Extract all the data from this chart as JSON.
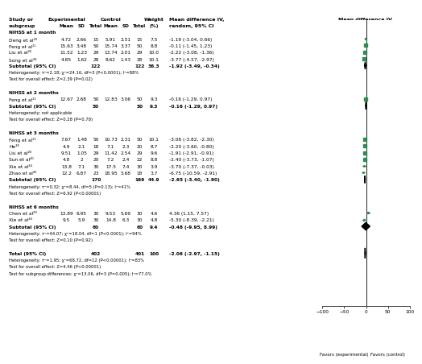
{
  "groups": [
    {
      "name": "NIHSS at 1 month",
      "studies": [
        {
          "label": "Deng et al²⁰",
          "exp_mean": "4.72",
          "exp_sd": "2.66",
          "exp_n": "15",
          "ctrl_mean": "5.91",
          "ctrl_sd": "2.51",
          "ctrl_n": "15",
          "weight": "7.5",
          "md": -1.19,
          "ci_lo": -3.04,
          "ci_hi": 0.66,
          "md_text": "-1.19 (-3.04, 0.66)"
        },
        {
          "label": "Feng et al¹¹",
          "exp_mean": "15.63",
          "exp_sd": "3.48",
          "exp_n": "50",
          "ctrl_mean": "15.74",
          "ctrl_sd": "3.37",
          "ctrl_n": "50",
          "weight": "8.8",
          "md": -0.11,
          "ci_lo": -1.45,
          "ci_hi": 1.23,
          "md_text": "-0.11 (-1.45, 1.23)"
        },
        {
          "label": "Liu et al²⁶",
          "exp_mean": "11.52",
          "exp_sd": "1.23",
          "exp_n": "29",
          "ctrl_mean": "13.74",
          "ctrl_sd": "2.01",
          "ctrl_n": "29",
          "weight": "10.0",
          "md": -2.22,
          "ci_lo": -3.08,
          "ci_hi": -1.36,
          "md_text": "-2.22 (-3.08, -1.36)"
        },
        {
          "label": "Song et al³³",
          "exp_mean": "4.85",
          "exp_sd": "1.62",
          "exp_n": "28",
          "ctrl_mean": "8.62",
          "ctrl_sd": "1.43",
          "ctrl_n": "28",
          "weight": "10.1",
          "md": -3.77,
          "ci_lo": -4.57,
          "ci_hi": -2.97,
          "md_text": "-3.77 (-4.57, -2.97)"
        }
      ],
      "sub_exp_n": "122",
      "sub_ctrl_n": "122",
      "sub_weight": "36.3",
      "sub_md": -1.92,
      "sub_ci_lo": -3.49,
      "sub_ci_hi": -0.34,
      "sub_md_text": "-1.92 (-3.49, -0.34)",
      "het": "Heterogeneity: τ²=2.18; χ²=24.16, df=3 (P<0.0001); I²=88%",
      "overall": "Test for overall effect: Z=2.39 (P=0.02)"
    },
    {
      "name": "NIHSS at 2 months",
      "studies": [
        {
          "label": "Feng et al¹¹",
          "exp_mean": "12.67",
          "exp_sd": "2.68",
          "exp_n": "50",
          "ctrl_mean": "12.83",
          "ctrl_sd": "3.06",
          "ctrl_n": "50",
          "weight": "9.3",
          "md": -0.16,
          "ci_lo": -1.29,
          "ci_hi": 0.97,
          "md_text": "-0.16 (-1.29, 0.97)"
        }
      ],
      "sub_exp_n": "50",
      "sub_ctrl_n": "50",
      "sub_weight": "9.3",
      "sub_md": -0.16,
      "sub_ci_lo": -1.29,
      "sub_ci_hi": 0.97,
      "sub_md_text": "-0.16 (-1.29, 0.97)",
      "het": "Heterogeneity: not applicable",
      "overall": "Test for overall effect: Z=0.28 (P=0.78)"
    },
    {
      "name": "NIHSS at 3 months",
      "studies": [
        {
          "label": "Feng et al¹¹",
          "exp_mean": "7.67",
          "exp_sd": "1.48",
          "exp_n": "50",
          "ctrl_mean": "10.73",
          "ctrl_sd": "2.31",
          "ctrl_n": "50",
          "weight": "10.1",
          "md": -3.06,
          "ci_lo": -3.82,
          "ci_hi": -2.3,
          "md_text": "-3.06 (-3.82, -2.30)"
        },
        {
          "label": "He³²",
          "exp_mean": "4.9",
          "exp_sd": "2.1",
          "exp_n": "18",
          "ctrl_mean": "7.1",
          "ctrl_sd": "2.3",
          "ctrl_n": "20",
          "weight": "8.7",
          "md": -2.2,
          "ci_lo": -3.6,
          "ci_hi": -0.8,
          "md_text": "-2.20 (-3.60, -0.80)"
        },
        {
          "label": "Liu et al²⁶",
          "exp_mean": "9.51",
          "exp_sd": "1.05",
          "exp_n": "29",
          "ctrl_mean": "11.42",
          "ctrl_sd": "2.54",
          "ctrl_n": "29",
          "weight": "9.6",
          "md": -1.91,
          "ci_lo": -2.91,
          "ci_hi": -0.91,
          "md_text": "-1.91 (-2.91, -0.91)"
        },
        {
          "label": "Sun et al⁴⁰",
          "exp_mean": "4.8",
          "exp_sd": "2",
          "exp_n": "20",
          "ctrl_mean": "7.2",
          "ctrl_sd": "2.4",
          "ctrl_n": "22",
          "weight": "8.8",
          "md": -2.4,
          "ci_lo": -3.73,
          "ci_hi": -1.07,
          "md_text": "-2.40 (-3.73, -1.07)"
        },
        {
          "label": "Xie et al⁴⁴",
          "exp_mean": "13.8",
          "exp_sd": "7.1",
          "exp_n": "30",
          "ctrl_mean": "17.5",
          "ctrl_sd": "7.4",
          "ctrl_n": "30",
          "weight": "3.9",
          "md": -3.7,
          "ci_lo": -7.37,
          "ci_hi": -0.03,
          "md_text": "-3.70 (-7.37, -0.03)"
        },
        {
          "label": "Zhao et al⁴⁵",
          "exp_mean": "12.2",
          "exp_sd": "6.87",
          "exp_n": "23",
          "ctrl_mean": "18.95",
          "ctrl_sd": "5.68",
          "ctrl_n": "18",
          "weight": "3.7",
          "md": -6.75,
          "ci_lo": -10.59,
          "ci_hi": -2.91,
          "md_text": "-6.75 (-10.59, -2.91)"
        }
      ],
      "sub_exp_n": "170",
      "sub_ctrl_n": "169",
      "sub_weight": "44.9",
      "sub_md": -2.65,
      "sub_ci_lo": -3.4,
      "sub_ci_hi": -1.9,
      "sub_md_text": "-2.65 (-3.40, -1.90)",
      "het": "Heterogeneity: τ²=0.32; χ²=8.44, df=5 (P=0.13); I²=41%",
      "overall": "Test for overall effect: Z=6.92 (P<0.00001)"
    },
    {
      "name": "NIHSS at 6 months",
      "studies": [
        {
          "label": "Chen et al²⁹",
          "exp_mean": "13.89",
          "exp_sd": "6.95",
          "exp_n": "30",
          "ctrl_mean": "9.53",
          "ctrl_sd": "5.69",
          "ctrl_n": "30",
          "weight": "4.6",
          "md": 4.36,
          "ci_lo": 1.15,
          "ci_hi": 7.57,
          "md_text": "4.36 (1.15, 7.57)"
        },
        {
          "label": "Xie et al⁴⁴",
          "exp_mean": "9.5",
          "exp_sd": "5.9",
          "exp_n": "30",
          "ctrl_mean": "14.8",
          "ctrl_sd": "6.3",
          "ctrl_n": "30",
          "weight": "4.8",
          "md": -5.3,
          "ci_lo": -8.39,
          "ci_hi": -2.21,
          "md_text": "-5.30 (-8.39, -2.21)"
        }
      ],
      "sub_exp_n": "60",
      "sub_ctrl_n": "60",
      "sub_weight": "9.4",
      "sub_md": -0.48,
      "sub_ci_lo": -9.95,
      "sub_ci_hi": 8.99,
      "sub_md_text": "-0.48 (-9.95, 8.99)",
      "het": "Heterogeneity: τ²=44.07; χ²=18.04, df=1 (P<0.0001); I²=94%",
      "overall": "Test for overall effect: Z=0.10 (P=0.92)"
    }
  ],
  "total_exp_n": "402",
  "total_ctrl_n": "401",
  "total_weight": "100",
  "total_md": -2.06,
  "total_ci_lo": -2.97,
  "total_ci_hi": -1.15,
  "total_md_text": "-2.06 (-2.97, -1.15)",
  "total_het": "Heterogeneity: τ²=1.95; χ²=68.72, df=12 (P<0.00001); I²=83%",
  "total_overall": "Test for overall effect: Z=4.46 (P<0.00001)",
  "total_subgroup": "Test for subgroup differences: χ²=13.06, df=3 (P=0.005); I²=77.0%",
  "axis_min": -100,
  "axis_max": 100,
  "axis_ticks": [
    -100,
    -50,
    0,
    50,
    100
  ],
  "plot_color": "#2d8b57",
  "fs_header": 4.5,
  "fs_body": 4.2,
  "fs_bold_header": 4.5,
  "fs_het": 3.8
}
